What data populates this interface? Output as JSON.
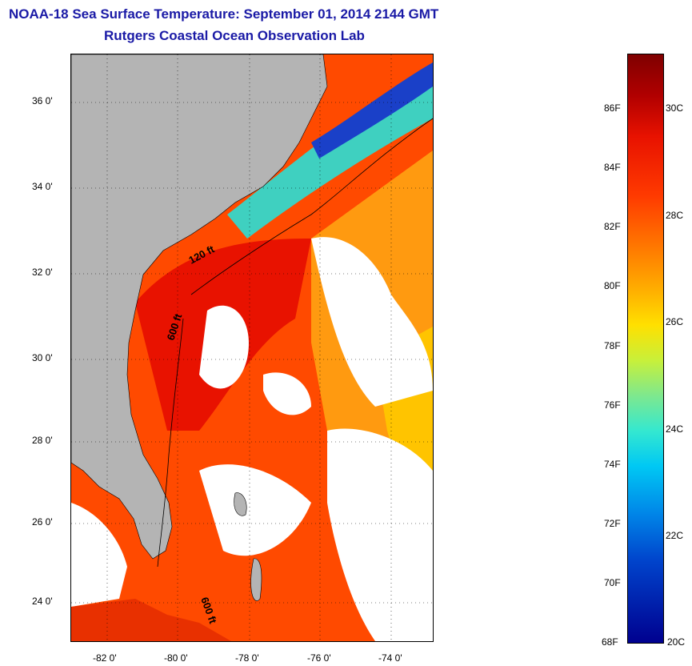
{
  "header": {
    "title": "NOAA-18 Sea Surface Temperature:  September 01, 2014 2144 GMT",
    "subtitle": "Rutgers Coastal Ocean Observation Lab"
  },
  "map": {
    "latitude_labels": [
      "36 0'",
      "34 0'",
      "32 0'",
      "30 0'",
      "28 0'",
      "26 0'",
      "24 0'"
    ],
    "longitude_labels": [
      "-82 0'",
      "-80 0'",
      "-78 0'",
      "-76 0'",
      "-74 0'"
    ],
    "contour_labels": [
      "120 ft",
      "600 ft",
      "600 ft"
    ],
    "land_color": "#b4b4b4",
    "cloud_color": "#ffffff"
  },
  "colorbar": {
    "fahrenheit_labels": [
      "86F",
      "84F",
      "82F",
      "80F",
      "78F",
      "76F",
      "74F",
      "72F",
      "70F",
      "68F"
    ],
    "celsius_labels": [
      "30C",
      "28C",
      "26C",
      "24C",
      "22C",
      "20C"
    ]
  }
}
